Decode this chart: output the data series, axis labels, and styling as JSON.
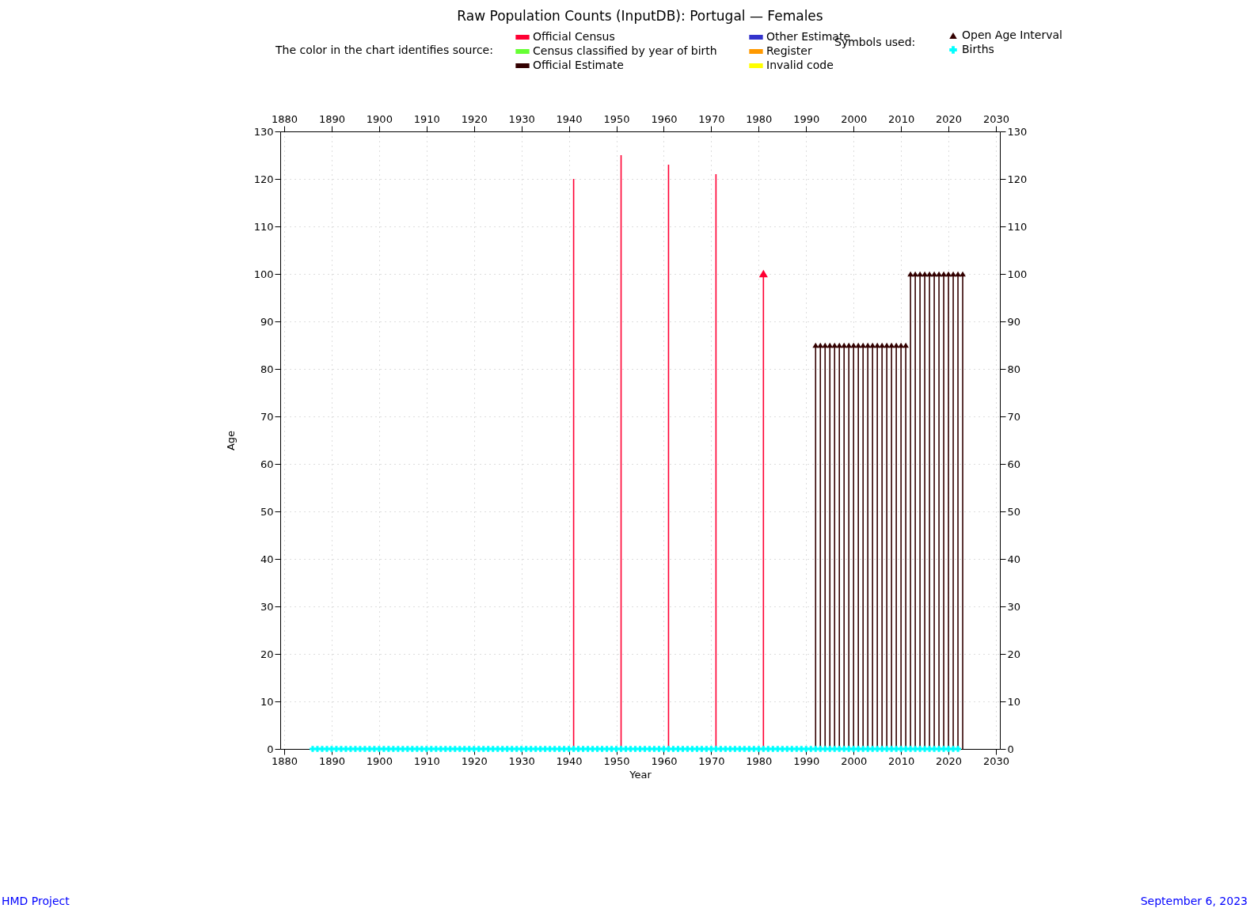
{
  "chart_data": {
    "type": "bar",
    "title": "Raw Population Counts (InputDB): Portugal — Females",
    "xlabel": "Year",
    "ylabel": "Age",
    "legend_title": "The color in the chart identifies source:",
    "annotations": [
      "Symbols used:",
      "HMD Project",
      "September 6, 2023"
    ],
    "xlim": [
      1880,
      2030
    ],
    "xticks": [
      1880,
      1890,
      1900,
      1910,
      1920,
      1930,
      1940,
      1950,
      1960,
      1970,
      1980,
      1990,
      2000,
      2010,
      2020,
      2030
    ],
    "x2lim": [
      1880,
      2030
    ],
    "x2ticks": [
      1880,
      1890,
      1900,
      1910,
      1920,
      1930,
      1940,
      1950,
      1960,
      1970,
      1980,
      1990,
      2000,
      2010,
      2020,
      2030
    ],
    "ylim": [
      0,
      130
    ],
    "yticks": [
      0,
      10,
      20,
      30,
      40,
      50,
      60,
      70,
      80,
      90,
      100,
      110,
      120,
      130
    ],
    "y2lim": [
      0,
      130
    ],
    "y2ticks": [
      0,
      10,
      20,
      30,
      40,
      50,
      60,
      70,
      80,
      90,
      100,
      110,
      120,
      130
    ],
    "grid": true,
    "legend": "top",
    "series": [
      {
        "name": "Official Census",
        "color": "#ff0033",
        "x": [
          1941,
          1951,
          1961,
          1971,
          1981
        ],
        "values": [
          120,
          125,
          123,
          121,
          100
        ]
      },
      {
        "name": "Census classified by year of birth",
        "color": "#66ff33"
      },
      {
        "name": "Official Estimate",
        "color": "#330000",
        "x": [
          1992,
          1993,
          1994,
          1995,
          1996,
          1997,
          1998,
          1999,
          2000,
          2001,
          2002,
          2003,
          2004,
          2005,
          2006,
          2007,
          2008,
          2009,
          2010,
          2011,
          2012,
          2013,
          2014,
          2015,
          2016,
          2017,
          2018,
          2019,
          2020,
          2021,
          2022,
          2023
        ],
        "values": [
          85,
          85,
          85,
          85,
          85,
          85,
          85,
          85,
          85,
          85,
          85,
          85,
          85,
          85,
          85,
          85,
          85,
          85,
          85,
          85,
          100,
          100,
          100,
          100,
          100,
          100,
          100,
          100,
          100,
          100,
          100,
          100
        ]
      },
      {
        "name": "Other Estimate",
        "color": "#3333cc"
      },
      {
        "name": "Register",
        "color": "#ff9900"
      },
      {
        "name": "Invalid code",
        "color": "#ffff00"
      },
      {
        "name": "Open Age Interval",
        "type": "scatter",
        "marker": "triangle",
        "color": "#330000",
        "x": [
          1981,
          1992,
          1993,
          1994,
          1995,
          1996,
          1997,
          1998,
          1999,
          2000,
          2001,
          2002,
          2003,
          2004,
          2005,
          2006,
          2007,
          2008,
          2009,
          2010,
          2011,
          2012,
          2013,
          2014,
          2015,
          2016,
          2017,
          2018,
          2019,
          2020,
          2021,
          2022,
          2023
        ],
        "values": [
          100,
          85,
          85,
          85,
          85,
          85,
          85,
          85,
          85,
          85,
          85,
          85,
          85,
          85,
          85,
          85,
          85,
          85,
          85,
          85,
          85,
          100,
          100,
          100,
          100,
          100,
          100,
          100,
          100,
          100,
          100,
          100,
          100
        ],
        "colors": [
          "#ff0033",
          "#330000",
          "#330000",
          "#330000",
          "#330000",
          "#330000",
          "#330000",
          "#330000",
          "#330000",
          "#330000",
          "#330000",
          "#330000",
          "#330000",
          "#330000",
          "#330000",
          "#330000",
          "#330000",
          "#330000",
          "#330000",
          "#330000",
          "#330000",
          "#330000",
          "#330000",
          "#330000",
          "#330000",
          "#330000",
          "#330000",
          "#330000",
          "#330000",
          "#330000",
          "#330000",
          "#330000",
          "#330000"
        ]
      },
      {
        "name": "Births",
        "type": "scatter",
        "marker": "cross",
        "color": "#00ffff",
        "x": [
          1886,
          1887,
          1888,
          1889,
          1890,
          1891,
          1892,
          1893,
          1894,
          1895,
          1896,
          1897,
          1898,
          1899,
          1900,
          1901,
          1902,
          1903,
          1904,
          1905,
          1906,
          1907,
          1908,
          1909,
          1910,
          1911,
          1912,
          1913,
          1914,
          1915,
          1916,
          1917,
          1918,
          1919,
          1920,
          1921,
          1922,
          1923,
          1924,
          1925,
          1926,
          1927,
          1928,
          1929,
          1930,
          1931,
          1932,
          1933,
          1934,
          1935,
          1936,
          1937,
          1938,
          1939,
          1940,
          1941,
          1942,
          1943,
          1944,
          1945,
          1946,
          1947,
          1948,
          1949,
          1950,
          1951,
          1952,
          1953,
          1954,
          1955,
          1956,
          1957,
          1958,
          1959,
          1960,
          1961,
          1962,
          1963,
          1964,
          1965,
          1966,
          1967,
          1968,
          1969,
          1970,
          1971,
          1972,
          1973,
          1974,
          1975,
          1976,
          1977,
          1978,
          1979,
          1980,
          1981,
          1982,
          1983,
          1984,
          1985,
          1986,
          1987,
          1988,
          1989,
          1990,
          1991,
          1992,
          1993,
          1994,
          1995,
          1996,
          1997,
          1998,
          1999,
          2000,
          2001,
          2002,
          2003,
          2004,
          2005,
          2006,
          2007,
          2008,
          2009,
          2010,
          2011,
          2012,
          2013,
          2014,
          2015,
          2016,
          2017,
          2018,
          2019,
          2020,
          2021,
          2022
        ],
        "values": [
          0,
          0,
          0,
          0,
          0,
          0,
          0,
          0,
          0,
          0,
          0,
          0,
          0,
          0,
          0,
          0,
          0,
          0,
          0,
          0,
          0,
          0,
          0,
          0,
          0,
          0,
          0,
          0,
          0,
          0,
          0,
          0,
          0,
          0,
          0,
          0,
          0,
          0,
          0,
          0,
          0,
          0,
          0,
          0,
          0,
          0,
          0,
          0,
          0,
          0,
          0,
          0,
          0,
          0,
          0,
          0,
          0,
          0,
          0,
          0,
          0,
          0,
          0,
          0,
          0,
          0,
          0,
          0,
          0,
          0,
          0,
          0,
          0,
          0,
          0,
          0,
          0,
          0,
          0,
          0,
          0,
          0,
          0,
          0,
          0,
          0,
          0,
          0,
          0,
          0,
          0,
          0,
          0,
          0,
          0,
          0,
          0,
          0,
          0,
          0,
          0,
          0,
          0,
          0,
          0,
          0,
          0,
          0,
          0,
          0,
          0,
          0,
          0,
          0,
          0,
          0,
          0,
          0,
          0,
          0,
          0,
          0,
          0,
          0,
          0,
          0,
          0,
          0,
          0,
          0,
          0,
          0,
          0,
          0,
          0,
          0,
          0
        ]
      }
    ]
  }
}
